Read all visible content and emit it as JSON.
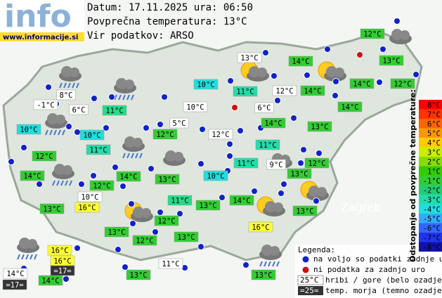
{
  "header": {
    "logo": "info",
    "url": "www.informacije.si",
    "lines": [
      "Datum: 17.11.2025 ura: 06:50",
      "Povprečna temperatura: 13°C",
      "Vir podatkov: ARSO"
    ]
  },
  "stations": [
    {
      "label": "12°C",
      "color": "#33cc33"
    },
    {
      "label": "13°C",
      "color": "#ffffff"
    },
    {
      "label": "14°C",
      "color": "#33cc33"
    },
    {
      "label": "13°C",
      "color": "#33cc33"
    },
    {
      "label": "8°C",
      "color": "#ffffff"
    },
    {
      "label": "10°C",
      "color": "#22dddd"
    },
    {
      "label": "11°C",
      "color": "#22ddaa"
    },
    {
      "label": "12°C",
      "color": "#ffffff"
    },
    {
      "label": "14°C",
      "color": "#33cc33"
    },
    {
      "label": "14°C",
      "color": "#33cc33"
    },
    {
      "label": "12°C",
      "color": "#33cc33"
    },
    {
      "label": "-1°C",
      "color": "#ffffff"
    },
    {
      "label": "6°C",
      "color": "#ffffff"
    },
    {
      "label": "11°C",
      "color": "#22dd88"
    },
    {
      "label": "10°C",
      "color": "#ffffff"
    },
    {
      "label": "6°C",
      "color": "#ffffff"
    },
    {
      "label": "14°C",
      "color": "#33cc33"
    },
    {
      "label": "10°C",
      "color": "#22dddd"
    },
    {
      "label": "5°C",
      "color": "#ffffff"
    },
    {
      "label": "14°C",
      "color": "#33cc33"
    },
    {
      "label": "13°C",
      "color": "#33cc33"
    },
    {
      "label": "10°C",
      "color": "#22dddd"
    },
    {
      "label": "12°C",
      "color": "#33cc33"
    },
    {
      "label": "12°C",
      "color": "#ffffff"
    },
    {
      "label": "11°C",
      "color": "#22ddaa"
    },
    {
      "label": "11°C",
      "color": "#22ddaa"
    },
    {
      "label": "12°C",
      "color": "#33cc33"
    },
    {
      "label": "11°C",
      "color": "#22ddaa"
    },
    {
      "label": "9°C",
      "color": "#ffffff"
    },
    {
      "label": "12°C",
      "color": "#33cc33"
    },
    {
      "label": "14°C",
      "color": "#33cc33"
    },
    {
      "label": "14°C",
      "color": "#33cc33"
    },
    {
      "label": "13°C",
      "color": "#33cc33"
    },
    {
      "label": "10°C",
      "color": "#22dddd"
    },
    {
      "label": "13°C",
      "color": "#33cc33"
    },
    {
      "label": "12°C",
      "color": "#33cc33"
    },
    {
      "label": "10°C",
      "color": "#ffffff"
    },
    {
      "label": "11°C",
      "color": "#22dd88"
    },
    {
      "label": "14°C",
      "color": "#33cc33"
    },
    {
      "label": "13°C",
      "color": "#33cc33"
    },
    {
      "label": "16°C",
      "color": "#ffff33"
    },
    {
      "label": "13°C",
      "color": "#33cc33"
    },
    {
      "label": "13°C",
      "color": "#33cc33"
    },
    {
      "label": "12°C",
      "color": "#33cc33"
    },
    {
      "label": "13°C",
      "color": "#33cc33"
    },
    {
      "label": "16°C",
      "color": "#ffff33"
    },
    {
      "label": "13°C",
      "color": "#33cc33"
    },
    {
      "label": "12°C",
      "color": "#33cc33"
    },
    {
      "label": "16°C",
      "color": "#ffff33"
    },
    {
      "label": "16°C",
      "color": "#ffff33"
    },
    {
      "label": "=17=",
      "color": "#333333"
    },
    {
      "label": "11°C",
      "color": "#ffffff"
    },
    {
      "label": "14°C",
      "color": "#ffffff"
    },
    {
      "label": "=17=",
      "color": "#333333"
    },
    {
      "label": "14°C",
      "color": "#33cc33"
    },
    {
      "label": "13°C",
      "color": "#33cc33"
    },
    {
      "label": "13°C",
      "color": "#33cc33"
    }
  ],
  "places": [
    "Zagreb"
  ],
  "legend": {
    "title": "Legenda:",
    "available": "na voljo so podatki zadnje ure",
    "missing": "ni podatka za zadnjo uro",
    "hill_sample": "25°C",
    "hill_text": "hribi / gore (belo ozadje)",
    "sea_sample": "=25=",
    "sea_text": "temp. morja (temno ozadje)"
  },
  "scale": {
    "title": "Odstopanje od povprečne temperature:",
    "items": [
      {
        "label": "8°C",
        "color": "#ff0000"
      },
      {
        "label": "7°C",
        "color": "#ff3300"
      },
      {
        "label": "6°C",
        "color": "#ff6600"
      },
      {
        "label": "5°C",
        "color": "#ff9900"
      },
      {
        "label": "4°C",
        "color": "#ffcc00"
      },
      {
        "label": "3°C",
        "color": "#ccee00"
      },
      {
        "label": "2°C",
        "color": "#88dd00"
      },
      {
        "label": "1°C",
        "color": "#33cc00"
      },
      {
        "label": "-1°C",
        "color": "#33cc33"
      },
      {
        "label": "-2°C",
        "color": "#22cc77"
      },
      {
        "label": "-3°C",
        "color": "#22ddaa"
      },
      {
        "label": "-4°C",
        "color": "#22dddd"
      },
      {
        "label": "-5°C",
        "color": "#33aaff"
      },
      {
        "label": "-6°C",
        "color": "#3366ff"
      },
      {
        "label": "-7°C",
        "color": "#2233ee"
      },
      {
        "label": "-8°C",
        "color": "#1111aa"
      }
    ]
  }
}
